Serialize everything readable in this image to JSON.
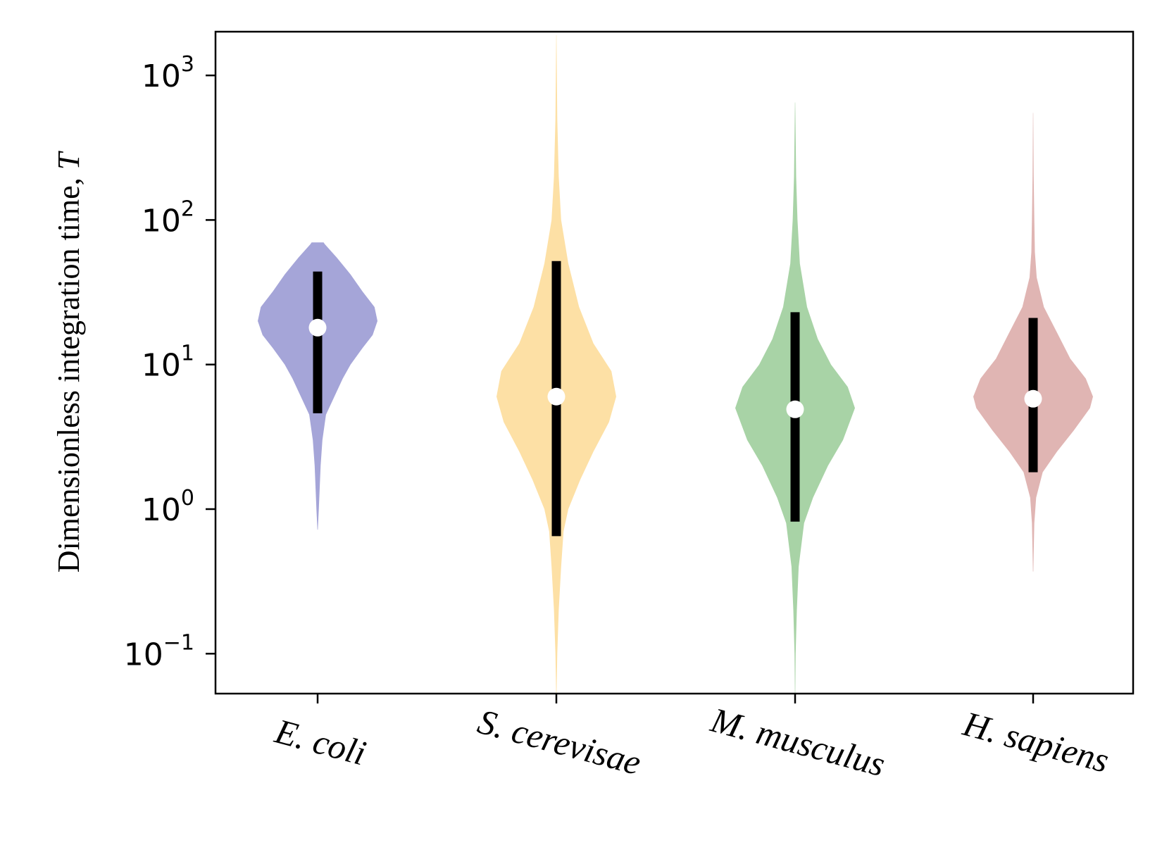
{
  "chart_data": {
    "type": "violin",
    "ylabel": "Dimensionless integration time,",
    "ylabel_symbol": "T",
    "yscale": "log",
    "ylim": [
      0.05,
      2000
    ],
    "yticks": [
      {
        "base": "10",
        "exp": "−1",
        "value": 0.1
      },
      {
        "base": "10",
        "exp": "0",
        "value": 1
      },
      {
        "base": "10",
        "exp": "1",
        "value": 10
      },
      {
        "base": "10",
        "exp": "2",
        "value": 100
      },
      {
        "base": "10",
        "exp": "3",
        "value": 1000
      }
    ],
    "grid": false,
    "categories": [
      "E. coli",
      "S. cerevisae",
      "M. musculus",
      "H. sapiens"
    ],
    "series": [
      {
        "category": "E. coli",
        "color": "#a5a5d8",
        "min": 0.72,
        "max": 70,
        "median": 18,
        "whisker_low": 4.6,
        "whisker_high": 44,
        "profile": [
          [
            0.72,
            0.004
          ],
          [
            1.0,
            0.02
          ],
          [
            2.0,
            0.05
          ],
          [
            3.0,
            0.08
          ],
          [
            4.5,
            0.14
          ],
          [
            6.0,
            0.28
          ],
          [
            8.0,
            0.42
          ],
          [
            10.0,
            0.55
          ],
          [
            13.0,
            0.75
          ],
          [
            16.0,
            0.92
          ],
          [
            20.0,
            1.0
          ],
          [
            25.0,
            0.95
          ],
          [
            32.0,
            0.75
          ],
          [
            42.0,
            0.55
          ],
          [
            55.0,
            0.32
          ],
          [
            68.0,
            0.12
          ],
          [
            70.0,
            0.1
          ]
        ]
      },
      {
        "category": "S. cerevisae",
        "color": "#fde0a5",
        "min": 0.05,
        "max": 1900,
        "median": 6,
        "whisker_low": 0.65,
        "whisker_high": 52,
        "profile": [
          [
            0.05,
            0.002
          ],
          [
            0.1,
            0.015
          ],
          [
            0.2,
            0.04
          ],
          [
            0.4,
            0.08
          ],
          [
            0.7,
            0.12
          ],
          [
            1.0,
            0.2
          ],
          [
            1.6,
            0.4
          ],
          [
            2.5,
            0.62
          ],
          [
            4.0,
            0.88
          ],
          [
            6.0,
            1.0
          ],
          [
            9.0,
            0.92
          ],
          [
            14.0,
            0.62
          ],
          [
            25.0,
            0.38
          ],
          [
            50.0,
            0.2
          ],
          [
            100.0,
            0.08
          ],
          [
            200.0,
            0.04
          ],
          [
            500.0,
            0.015
          ],
          [
            1900.0,
            0.002
          ]
        ]
      },
      {
        "category": "M. musculus",
        "color": "#a8d3a6",
        "min": 0.05,
        "max": 650,
        "median": 4.9,
        "whisker_low": 0.82,
        "whisker_high": 23,
        "profile": [
          [
            0.05,
            0.002
          ],
          [
            0.1,
            0.01
          ],
          [
            0.2,
            0.03
          ],
          [
            0.4,
            0.06
          ],
          [
            0.8,
            0.15
          ],
          [
            1.2,
            0.3
          ],
          [
            2.0,
            0.55
          ],
          [
            3.0,
            0.8
          ],
          [
            5.0,
            1.0
          ],
          [
            7.0,
            0.88
          ],
          [
            10.0,
            0.6
          ],
          [
            15.0,
            0.38
          ],
          [
            25.0,
            0.2
          ],
          [
            50.0,
            0.08
          ],
          [
            100.0,
            0.04
          ],
          [
            200.0,
            0.018
          ],
          [
            650.0,
            0.002
          ]
        ]
      },
      {
        "category": "H. sapiens",
        "color": "#e0b5b3",
        "min": 0.37,
        "max": 550,
        "median": 5.8,
        "whisker_low": 1.8,
        "whisker_high": 21,
        "profile": [
          [
            0.37,
            0.004
          ],
          [
            0.5,
            0.01
          ],
          [
            0.8,
            0.02
          ],
          [
            1.2,
            0.05
          ],
          [
            1.8,
            0.16
          ],
          [
            2.5,
            0.4
          ],
          [
            3.5,
            0.68
          ],
          [
            5.0,
            0.95
          ],
          [
            6.0,
            1.0
          ],
          [
            8.0,
            0.88
          ],
          [
            11.0,
            0.62
          ],
          [
            16.0,
            0.42
          ],
          [
            25.0,
            0.18
          ],
          [
            40.0,
            0.06
          ],
          [
            60.0,
            0.03
          ],
          [
            100.0,
            0.02
          ],
          [
            200.0,
            0.01
          ],
          [
            550.0,
            0.002
          ]
        ]
      }
    ]
  }
}
